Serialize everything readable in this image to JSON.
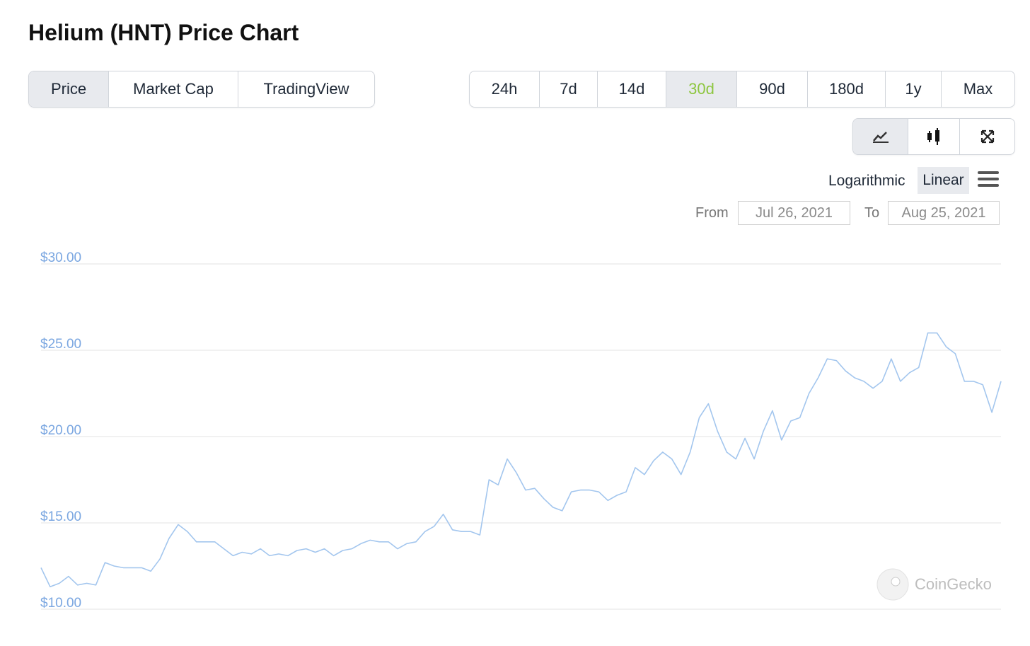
{
  "header": {
    "title": "Helium (HNT) Price Chart"
  },
  "view_tabs": {
    "items": [
      "Price",
      "Market Cap",
      "TradingView"
    ],
    "active": 0
  },
  "range_tabs": {
    "items": [
      "24h",
      "7d",
      "14d",
      "30d",
      "90d",
      "180d",
      "1y",
      "Max"
    ],
    "active": 3
  },
  "scale_toggle": {
    "items": [
      "Logarithmic",
      "Linear"
    ],
    "active": 1
  },
  "date_range": {
    "from_label": "From",
    "from": "Jul 26, 2021",
    "to_label": "To",
    "to": "Aug 25, 2021"
  },
  "watermark": "CoinGecko",
  "chart_data": {
    "type": "line",
    "color": "#a3c6ee",
    "grid": true,
    "ylim": [
      10,
      30
    ],
    "yticks": [
      {
        "value": 10,
        "label": "$10.00"
      },
      {
        "value": 15,
        "label": "$15.00"
      },
      {
        "value": 20,
        "label": "$20.00"
      },
      {
        "value": 25,
        "label": "$25.00"
      },
      {
        "value": 30,
        "label": "$30.00"
      }
    ],
    "values": [
      12.4,
      11.3,
      11.5,
      11.9,
      11.4,
      11.5,
      11.4,
      12.7,
      12.5,
      12.4,
      12.4,
      12.4,
      12.2,
      12.9,
      14.1,
      14.9,
      14.5,
      13.9,
      13.9,
      13.9,
      13.5,
      13.1,
      13.3,
      13.2,
      13.5,
      13.1,
      13.2,
      13.1,
      13.4,
      13.5,
      13.3,
      13.5,
      13.1,
      13.4,
      13.5,
      13.8,
      14.0,
      13.9,
      13.9,
      13.5,
      13.8,
      13.9,
      14.5,
      14.8,
      15.5,
      14.6,
      14.5,
      14.5,
      14.3,
      17.5,
      17.2,
      18.7,
      17.9,
      16.9,
      17.0,
      16.4,
      15.9,
      15.7,
      16.8,
      16.9,
      16.9,
      16.8,
      16.3,
      16.6,
      16.8,
      18.2,
      17.8,
      18.6,
      19.1,
      18.7,
      17.8,
      19.1,
      21.1,
      21.9,
      20.3,
      19.1,
      18.7,
      19.9,
      18.7,
      20.3,
      21.5,
      19.8,
      20.9,
      21.1,
      22.5,
      23.4,
      24.5,
      24.4,
      23.8,
      23.4,
      23.2,
      22.8,
      23.2,
      24.5,
      23.2,
      23.7,
      24.0,
      26.0,
      26.0,
      25.2,
      24.8,
      23.2,
      23.2,
      23.0,
      21.4,
      23.2
    ]
  }
}
